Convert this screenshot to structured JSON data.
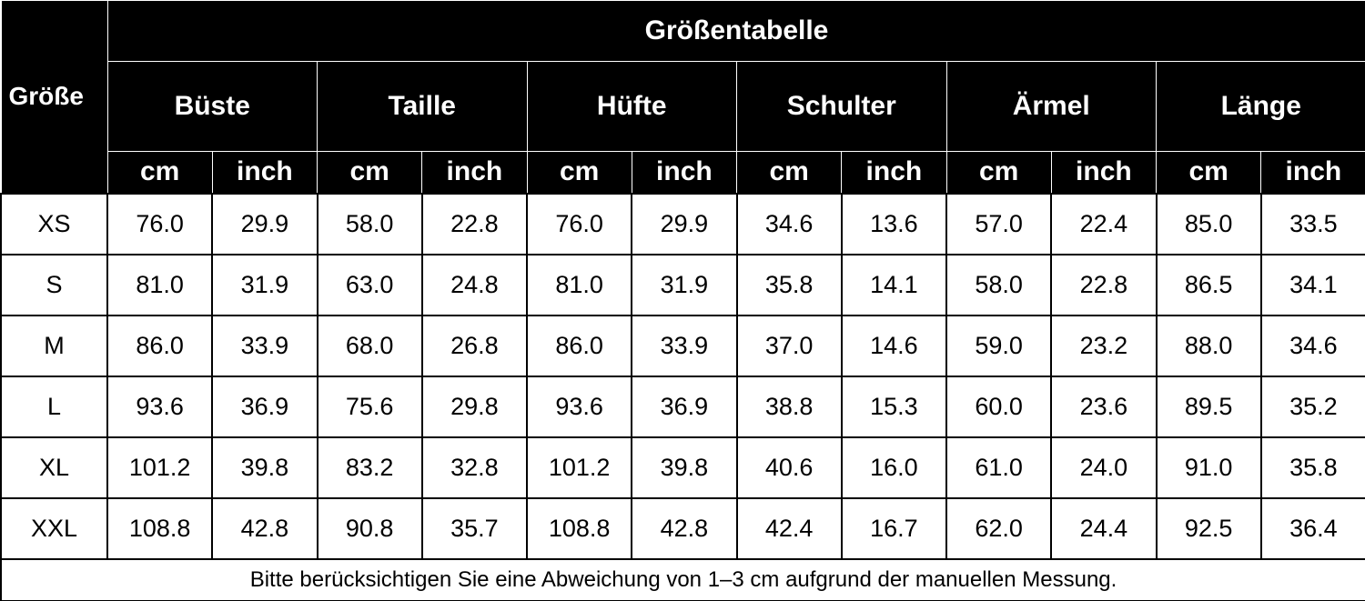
{
  "table": {
    "title": "Größentabelle",
    "size_header": "Größe",
    "measurements": [
      {
        "name": "Büste",
        "units": [
          "cm",
          "inch"
        ]
      },
      {
        "name": "Taille",
        "units": [
          "cm",
          "inch"
        ]
      },
      {
        "name": "Hüfte",
        "units": [
          "cm",
          "inch"
        ]
      },
      {
        "name": "Schulter",
        "units": [
          "cm",
          "inch"
        ]
      },
      {
        "name": "Ärmel",
        "units": [
          "cm",
          "inch"
        ]
      },
      {
        "name": "Länge",
        "units": [
          "cm",
          "inch"
        ]
      }
    ],
    "rows": [
      {
        "size": "XS",
        "values": [
          "76.0",
          "29.9",
          "58.0",
          "22.8",
          "76.0",
          "29.9",
          "34.6",
          "13.6",
          "57.0",
          "22.4",
          "85.0",
          "33.5"
        ]
      },
      {
        "size": "S",
        "values": [
          "81.0",
          "31.9",
          "63.0",
          "24.8",
          "81.0",
          "31.9",
          "35.8",
          "14.1",
          "58.0",
          "22.8",
          "86.5",
          "34.1"
        ]
      },
      {
        "size": "M",
        "values": [
          "86.0",
          "33.9",
          "68.0",
          "26.8",
          "86.0",
          "33.9",
          "37.0",
          "14.6",
          "59.0",
          "23.2",
          "88.0",
          "34.6"
        ]
      },
      {
        "size": "L",
        "values": [
          "93.6",
          "36.9",
          "75.6",
          "29.8",
          "93.6",
          "36.9",
          "38.8",
          "15.3",
          "60.0",
          "23.6",
          "89.5",
          "35.2"
        ]
      },
      {
        "size": "XL",
        "values": [
          "101.2",
          "39.8",
          "83.2",
          "32.8",
          "101.2",
          "39.8",
          "40.6",
          "16.0",
          "61.0",
          "24.0",
          "91.0",
          "35.8"
        ]
      },
      {
        "size": "XXL",
        "values": [
          "108.8",
          "42.8",
          "90.8",
          "35.7",
          "108.8",
          "42.8",
          "42.4",
          "16.7",
          "62.0",
          "24.4",
          "92.5",
          "36.4"
        ]
      }
    ],
    "footnote": "Bitte berücksichtigen Sie eine Abweichung von 1–3 cm aufgrund der manuellen Messung."
  }
}
